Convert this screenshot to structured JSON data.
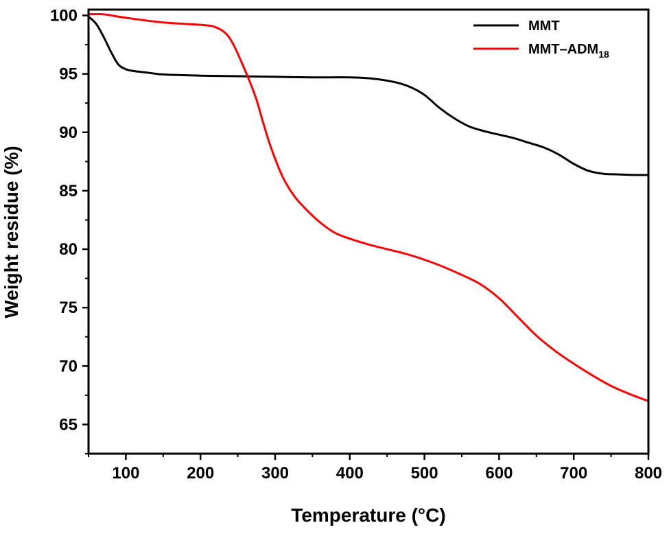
{
  "chart_data": {
    "type": "line",
    "xlabel": "Temperature (°C)",
    "ylabel": "Weight residue (%)",
    "xlim": [
      50,
      800
    ],
    "ylim": [
      62.5,
      100.5
    ],
    "xticks": [
      100,
      200,
      300,
      400,
      500,
      600,
      700,
      800
    ],
    "yticks": [
      65,
      70,
      75,
      80,
      85,
      90,
      95,
      100
    ],
    "grid": false,
    "legend_position": "top-right",
    "series": [
      {
        "name": "MMT",
        "color": "#000000",
        "x": [
          50,
          60,
          70,
          80,
          90,
          100,
          110,
          130,
          150,
          200,
          250,
          300,
          350,
          400,
          430,
          460,
          480,
          500,
          520,
          540,
          560,
          580,
          600,
          620,
          640,
          660,
          680,
          700,
          720,
          740,
          760,
          780,
          800
        ],
        "y": [
          99.9,
          99.3,
          98.2,
          96.9,
          95.8,
          95.4,
          95.25,
          95.1,
          94.95,
          94.85,
          94.8,
          94.75,
          94.7,
          94.7,
          94.6,
          94.3,
          93.9,
          93.2,
          92.1,
          91.2,
          90.5,
          90.1,
          89.8,
          89.5,
          89.1,
          88.7,
          88.1,
          87.3,
          86.7,
          86.45,
          86.4,
          86.35,
          86.35
        ]
      },
      {
        "name": "MMT–ADM",
        "name_sub": "18",
        "color": "#ff0000",
        "x": [
          50,
          70,
          100,
          150,
          200,
          220,
          235,
          245,
          255,
          265,
          275,
          285,
          295,
          310,
          325,
          340,
          360,
          380,
          400,
          425,
          450,
          475,
          500,
          525,
          550,
          575,
          600,
          625,
          650,
          675,
          700,
          725,
          750,
          775,
          800
        ],
        "y": [
          100.1,
          100.1,
          99.8,
          99.4,
          99.2,
          99.0,
          98.4,
          97.4,
          96.0,
          94.5,
          92.8,
          90.6,
          88.6,
          86.2,
          84.6,
          83.5,
          82.3,
          81.4,
          80.9,
          80.4,
          80.0,
          79.6,
          79.1,
          78.5,
          77.8,
          77.0,
          75.8,
          74.2,
          72.6,
          71.3,
          70.2,
          69.2,
          68.3,
          67.6,
          67.0
        ]
      }
    ]
  }
}
